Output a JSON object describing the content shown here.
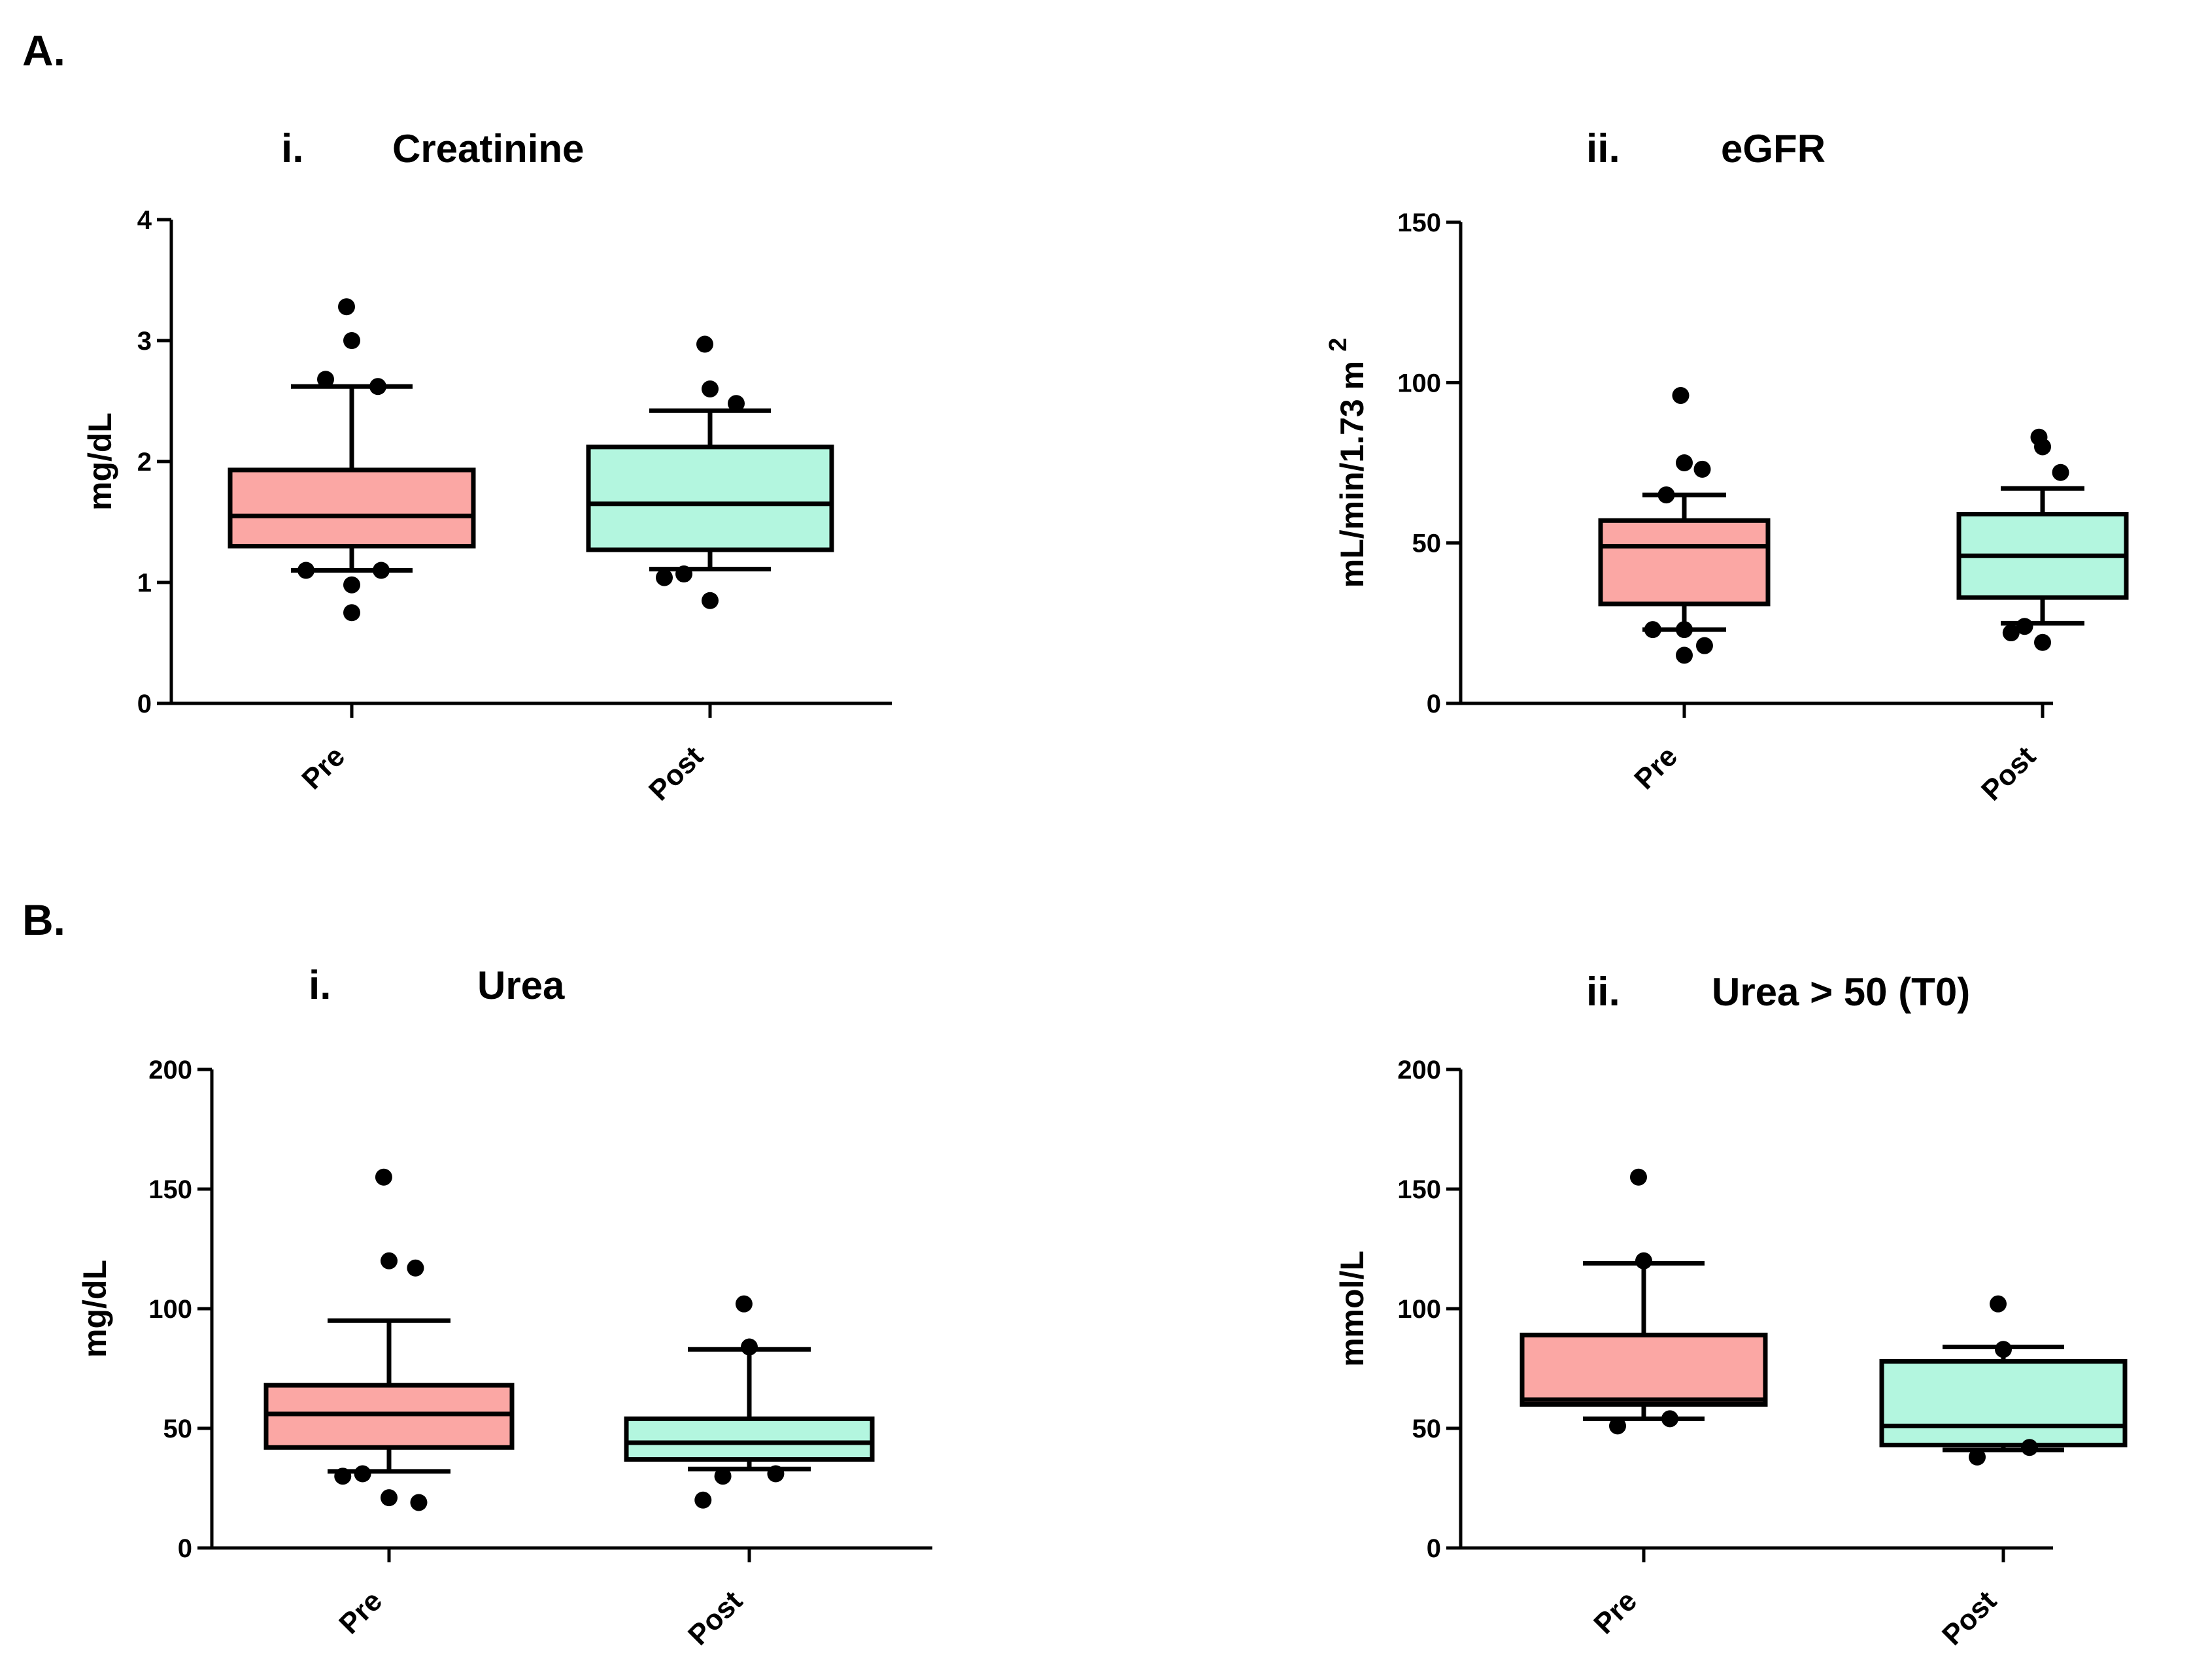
{
  "figure": {
    "panel_labels": {
      "A": "A.",
      "B": "B."
    }
  },
  "colors": {
    "pre_fill": "#fba7a4",
    "post_fill": "#b3f6df",
    "ink": "#000000"
  },
  "chart_data": [
    {
      "id": "creatinine",
      "type": "box",
      "numeral": "i.",
      "title": "Creatinine",
      "ylabel": "mg/dL",
      "ylabel_sup": "",
      "ylim": [
        0,
        4
      ],
      "yticks": [
        0,
        1,
        2,
        3,
        4
      ],
      "categories": [
        "Pre",
        "Post"
      ],
      "boxes": [
        {
          "category": "Pre",
          "whisker_low": 1.1,
          "q1": 1.3,
          "median": 1.55,
          "q3": 1.93,
          "whisker_high": 2.62,
          "outliers": [
            3.28,
            3.0,
            2.62,
            2.68,
            1.1,
            0.98,
            1.1,
            0.75
          ]
        },
        {
          "category": "Post",
          "whisker_low": 1.11,
          "q1": 1.27,
          "median": 1.65,
          "q3": 2.12,
          "whisker_high": 2.42,
          "outliers": [
            2.97,
            2.6,
            2.48,
            1.07,
            1.04,
            0.85
          ]
        }
      ]
    },
    {
      "id": "egfr",
      "type": "box",
      "numeral": "ii.",
      "title": "eGFR",
      "ylabel": "mL/min/1.73 m",
      "ylabel_sup": "2",
      "ylim": [
        0,
        150
      ],
      "yticks": [
        0,
        50,
        100,
        150
      ],
      "categories": [
        "Pre",
        "Post"
      ],
      "boxes": [
        {
          "category": "Pre",
          "whisker_low": 23,
          "q1": 31,
          "median": 49,
          "q3": 57,
          "whisker_high": 65,
          "outliers": [
            96,
            75,
            73,
            65,
            23,
            23,
            18,
            15
          ]
        },
        {
          "category": "Post",
          "whisker_low": 25,
          "q1": 33,
          "median": 46,
          "q3": 59,
          "whisker_high": 67,
          "outliers": [
            83,
            80,
            72,
            24,
            22,
            19
          ]
        }
      ]
    },
    {
      "id": "urea",
      "type": "box",
      "numeral": "i.",
      "title": "Urea",
      "ylabel": "mg/dL",
      "ylabel_sup": "",
      "ylim": [
        0,
        200
      ],
      "yticks": [
        0,
        50,
        100,
        150,
        200
      ],
      "categories": [
        "Pre",
        "Post"
      ],
      "boxes": [
        {
          "category": "Pre",
          "whisker_low": 32,
          "q1": 42,
          "median": 56,
          "q3": 68,
          "whisker_high": 95,
          "outliers": [
            155,
            120,
            117,
            31,
            30,
            21,
            19
          ]
        },
        {
          "category": "Post",
          "whisker_low": 33,
          "q1": 37,
          "median": 44,
          "q3": 54,
          "whisker_high": 83,
          "outliers": [
            102,
            84,
            31,
            30,
            20
          ]
        }
      ]
    },
    {
      "id": "urea-gt50",
      "type": "box",
      "numeral": "ii.",
      "title": "Urea > 50 (T0)",
      "ylabel": "mmol/L",
      "ylabel_sup": "",
      "ylim": [
        0,
        200
      ],
      "yticks": [
        0,
        50,
        100,
        150,
        200
      ],
      "categories": [
        "Pre",
        "Post"
      ],
      "boxes": [
        {
          "category": "Pre",
          "whisker_low": 54,
          "q1": 60,
          "median": 62,
          "q3": 89,
          "whisker_high": 119,
          "outliers": [
            155,
            120,
            54,
            51
          ]
        },
        {
          "category": "Post",
          "whisker_low": 41,
          "q1": 43,
          "median": 51,
          "q3": 78,
          "whisker_high": 84,
          "outliers": [
            102,
            83,
            42,
            38
          ]
        }
      ]
    }
  ]
}
